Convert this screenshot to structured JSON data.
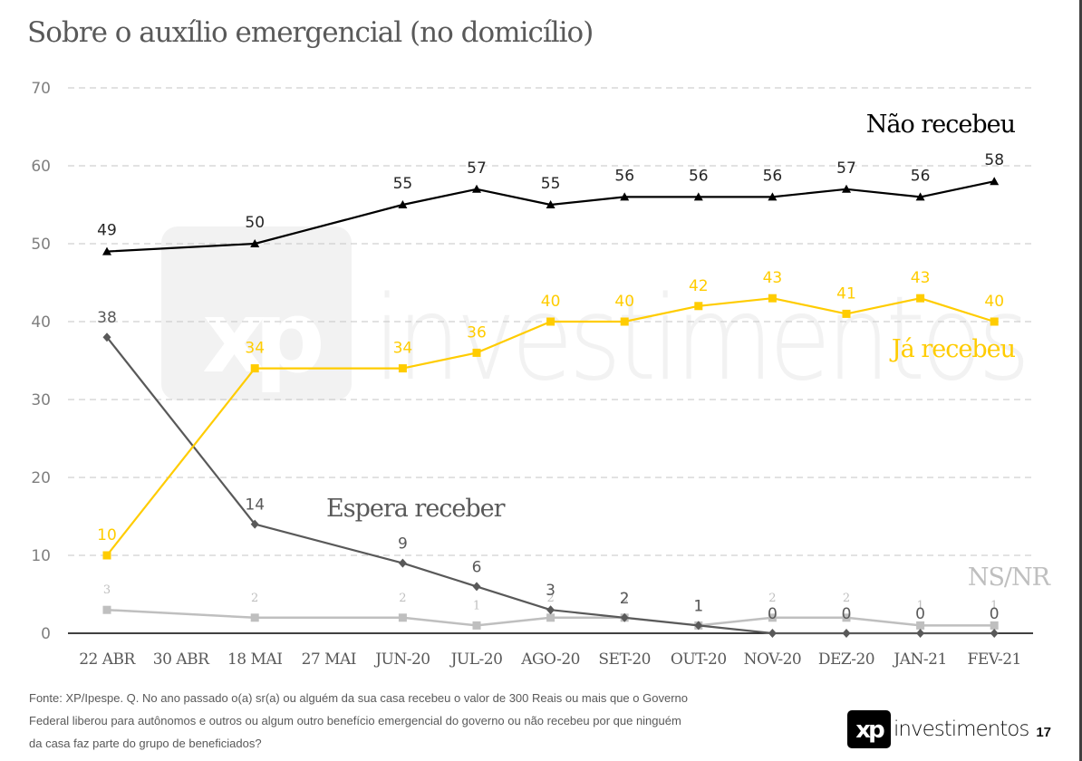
{
  "slide": {
    "title": "Sobre o auxílio emergencial (no domicílio)",
    "footer_lines": [
      "Fonte: XP/Ipespe. Q. No ano passado o(a) sr(a) ou alguém da sua casa recebeu o valor de 300 Reais ou mais que o Governo",
      "Federal liberou para autônomos e outros ou algum outro benefício emergencial do governo ou não recebeu por que ninguém",
      "da casa faz parte do grupo de beneficiados?"
    ],
    "brand_mark": "xp",
    "brand_text": "investimentos",
    "page_number": "17",
    "watermark_mark": "xp",
    "watermark_text": "investimentos"
  },
  "chart_data": {
    "type": "line",
    "title": "Sobre o auxílio emergencial (no domicílio)",
    "xlabel": "",
    "ylabel": "",
    "ylim": [
      0,
      70
    ],
    "yticks": [
      0,
      10,
      20,
      30,
      40,
      50,
      60,
      70
    ],
    "grid": true,
    "categories": [
      "22 ABR",
      "30 ABR",
      "18 MAI",
      "27 MAI",
      "JUN-20",
      "JUL-20",
      "AGO-20",
      "SET-20",
      "OUT-20",
      "NOV-20",
      "DEZ-20",
      "JAN-21",
      "FEV-21"
    ],
    "series": [
      {
        "name": "Não recebeu",
        "color": "#000000",
        "marker": "triangle",
        "values": [
          49,
          null,
          50,
          null,
          55,
          57,
          55,
          56,
          56,
          56,
          57,
          56,
          58
        ]
      },
      {
        "name": "Já recebeu",
        "color": "#FFCC00",
        "marker": "square",
        "values": [
          10,
          null,
          34,
          null,
          34,
          36,
          40,
          40,
          42,
          43,
          41,
          43,
          40
        ]
      },
      {
        "name": "Espera receber",
        "color": "#595959",
        "marker": "diamond",
        "values": [
          38,
          null,
          14,
          null,
          9,
          6,
          3,
          2,
          1,
          0,
          0,
          0,
          0
        ]
      },
      {
        "name": "NS/NR",
        "color": "#BFBFBF",
        "marker": "square",
        "values": [
          3,
          null,
          2,
          null,
          2,
          1,
          2,
          2,
          1,
          2,
          2,
          1,
          1
        ]
      }
    ],
    "legend": "inline labels near lines"
  }
}
